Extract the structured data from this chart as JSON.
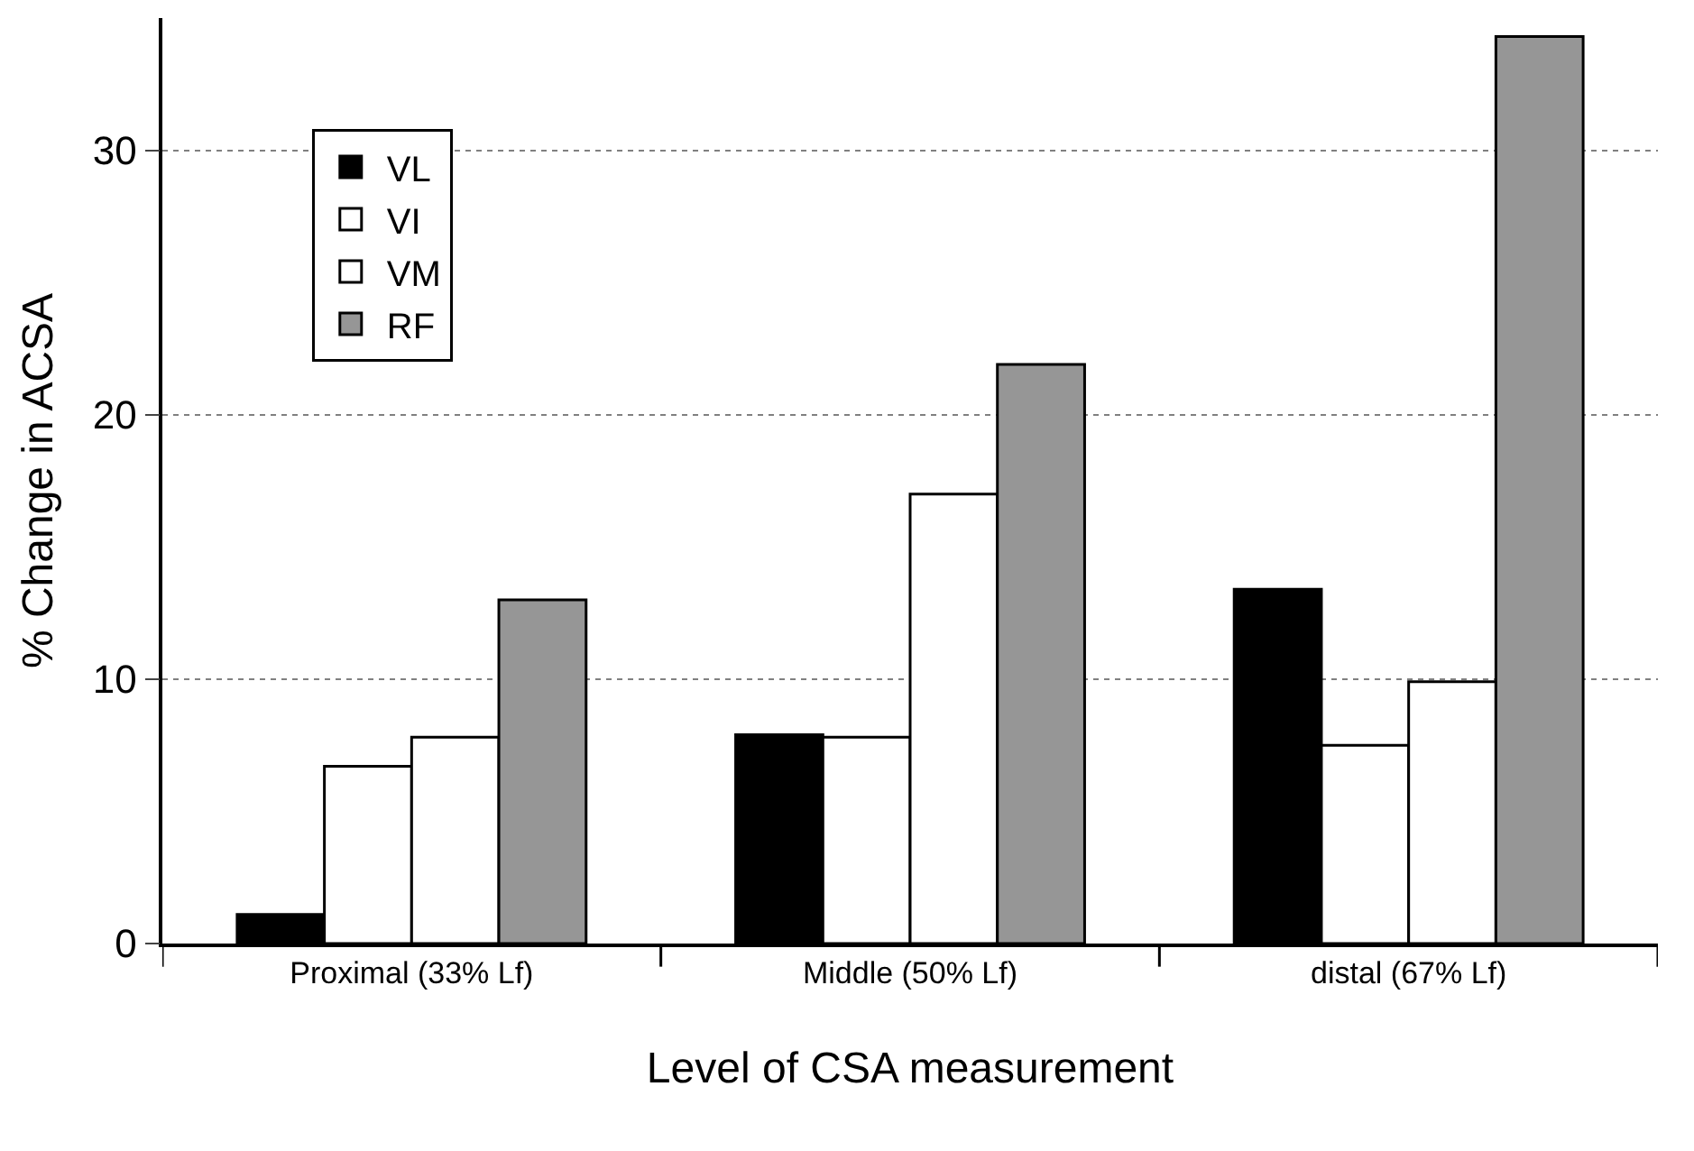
{
  "chart_data": {
    "type": "bar",
    "xlabel": "Level of CSA measurement",
    "ylabel": "% Change in ACSA",
    "categories": [
      "Proximal (33% Lf)",
      "Middle (50% Lf)",
      "distal (67% Lf)"
    ],
    "series": [
      {
        "name": "VL",
        "color": "#000000",
        "values": [
          1.1,
          7.9,
          13.4
        ]
      },
      {
        "name": "VI",
        "color": "#ffffff",
        "values": [
          6.7,
          7.8,
          7.5
        ]
      },
      {
        "name": "VM",
        "color": "#ffffff",
        "values": [
          7.8,
          17.0,
          9.9
        ]
      },
      {
        "name": "RF",
        "color": "#969696",
        "values": [
          13.0,
          21.9,
          34.3
        ]
      }
    ],
    "ylim": [
      0,
      35
    ],
    "yticks": [
      0,
      10,
      20,
      30
    ],
    "grid": "y",
    "legend": "top left"
  }
}
